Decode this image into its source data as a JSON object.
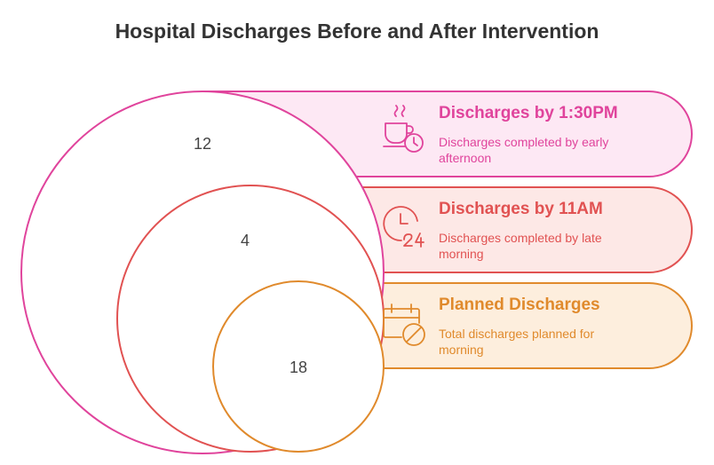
{
  "title": "Hospital Discharges Before and After Intervention",
  "colors": {
    "pink": "#e0449c",
    "red": "#e15252",
    "orange": "#e08a2c",
    "pink_fill": "#fde8f4",
    "red_fill": "#fde8e6",
    "orange_fill": "#fdeedd"
  },
  "items": [
    {
      "value": "12",
      "heading": "Discharges by 1:30PM",
      "description": "Discharges completed by early afternoon",
      "icon": "coffee-cup-clock-icon"
    },
    {
      "value": "4",
      "heading": "Discharges by 11AM",
      "description": "Discharges completed by late morning",
      "icon": "clock-24-icon"
    },
    {
      "value": "18",
      "heading": "Planned Discharges",
      "description": "Total discharges planned for morning",
      "icon": "calendar-cancel-icon"
    }
  ]
}
